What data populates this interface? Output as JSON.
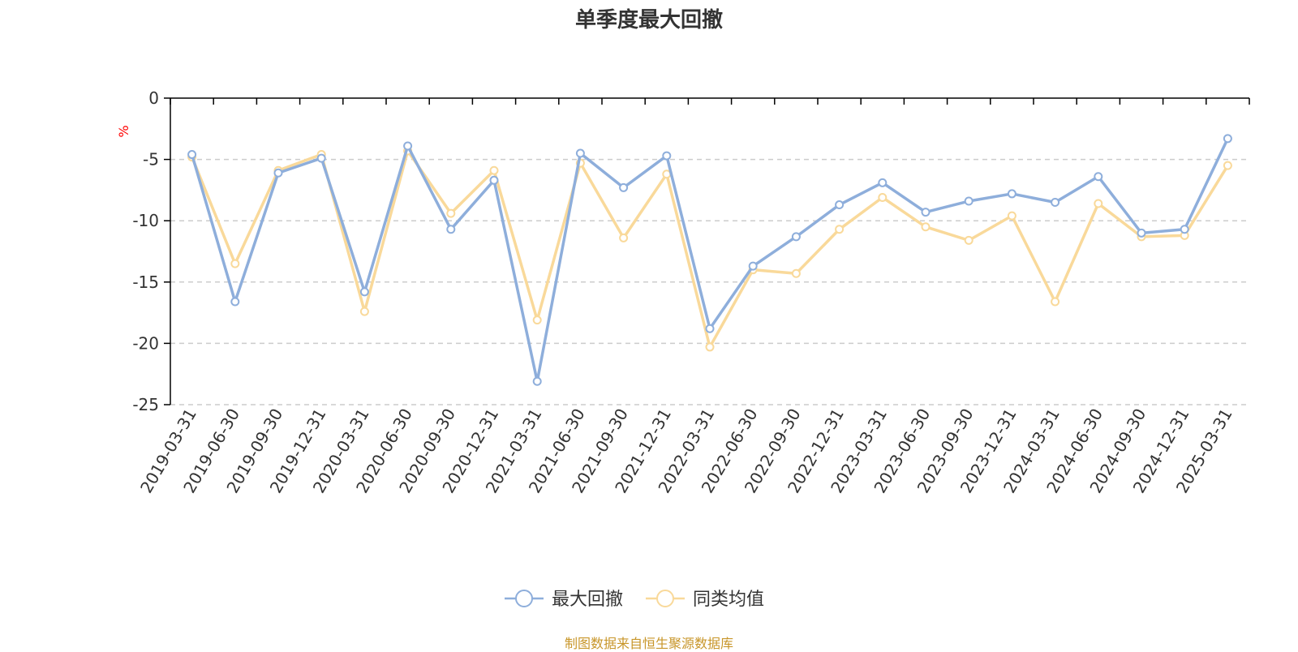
{
  "chart_data": {
    "type": "line",
    "title": "单季度最大回撤",
    "ylabel": "%",
    "xlabel": "",
    "ylim": [
      -25,
      0
    ],
    "yticks": [
      0,
      -5,
      -10,
      -15,
      -20,
      -25
    ],
    "grid": true,
    "legend_position": "bottom",
    "categories": [
      "2019-03-31",
      "2019-06-30",
      "2019-09-30",
      "2019-12-31",
      "2020-03-31",
      "2020-06-30",
      "2020-09-30",
      "2020-12-31",
      "2021-03-31",
      "2021-06-30",
      "2021-09-30",
      "2021-12-31",
      "2022-03-31",
      "2022-06-30",
      "2022-09-30",
      "2022-12-31",
      "2023-03-31",
      "2023-06-30",
      "2023-09-30",
      "2023-12-31",
      "2024-03-31",
      "2024-06-30",
      "2024-09-30",
      "2024-12-31",
      "2025-03-31"
    ],
    "series": [
      {
        "name": "最大回撤",
        "color": "#8eaedb",
        "values": [
          -4.6,
          -16.6,
          -6.1,
          -4.9,
          -15.8,
          -3.9,
          -10.7,
          -6.7,
          -23.1,
          -4.5,
          -7.3,
          -4.7,
          -18.8,
          -13.7,
          -11.3,
          -8.7,
          -6.9,
          -9.3,
          -8.4,
          -7.8,
          -8.5,
          -6.4,
          -11.0,
          -10.7,
          -3.3
        ]
      },
      {
        "name": "同类均值",
        "color": "#f9d99a",
        "values": [
          -4.8,
          -13.5,
          -5.9,
          -4.6,
          -17.4,
          -4.3,
          -9.4,
          -5.9,
          -18.1,
          -5.3,
          -11.4,
          -6.2,
          -20.3,
          -14.0,
          -14.3,
          -10.7,
          -8.1,
          -10.5,
          -11.6,
          -9.6,
          -16.6,
          -8.6,
          -11.3,
          -11.2,
          -5.5
        ]
      }
    ],
    "source": "制图数据来自恒生聚源数据库",
    "source_color": "#c8962a",
    "axis_color": "#000000",
    "grid_color": "#cccccc",
    "ylabel_color": "#ff0000"
  }
}
